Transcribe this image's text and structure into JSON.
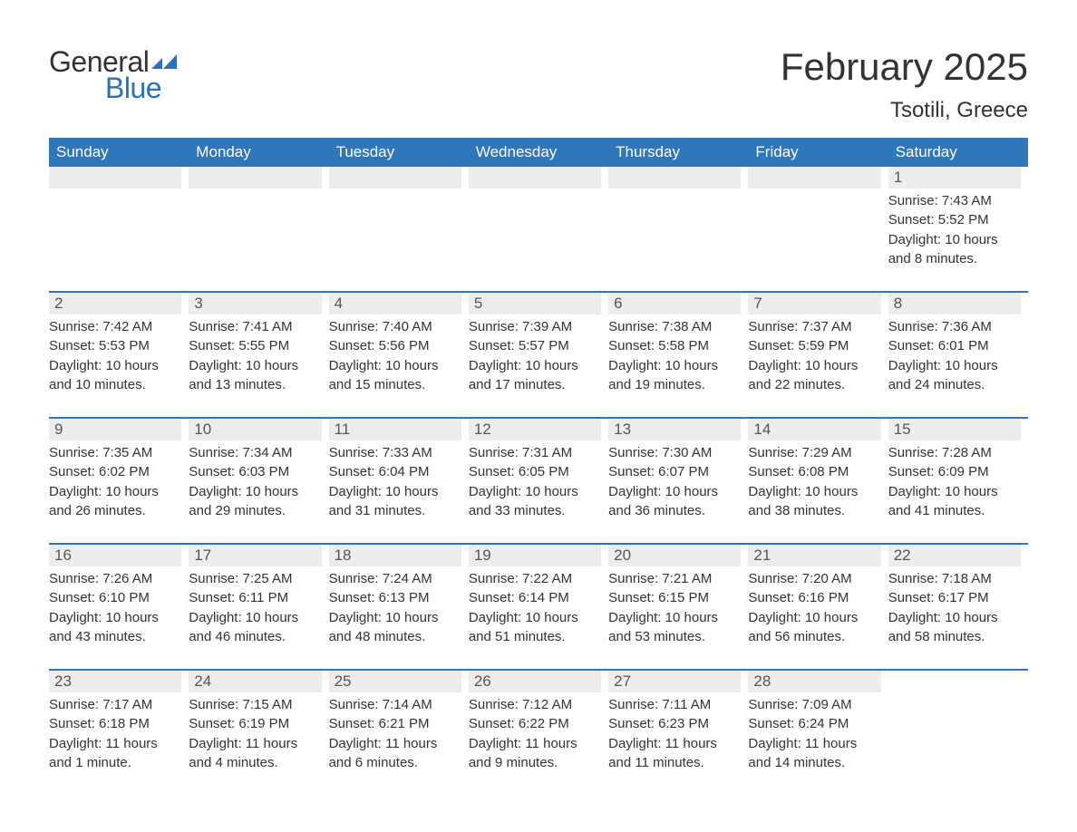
{
  "logo": {
    "text1": "General",
    "text2": "Blue",
    "icon_color": "#2a71b8"
  },
  "header": {
    "month_title": "February 2025",
    "location": "Tsotili, Greece"
  },
  "colors": {
    "header_bg": "#2f77bd",
    "header_text": "#ffffff",
    "daynum_bg": "#ededed",
    "text": "#333333",
    "rule": "#2f77bd"
  },
  "weekdays": [
    "Sunday",
    "Monday",
    "Tuesday",
    "Wednesday",
    "Thursday",
    "Friday",
    "Saturday"
  ],
  "weeks": [
    [
      {
        "empty": true
      },
      {
        "empty": true
      },
      {
        "empty": true
      },
      {
        "empty": true
      },
      {
        "empty": true
      },
      {
        "empty": true
      },
      {
        "day": "1",
        "sunrise": "Sunrise: 7:43 AM",
        "sunset": "Sunset: 5:52 PM",
        "daylight1": "Daylight: 10 hours",
        "daylight2": "and 8 minutes."
      }
    ],
    [
      {
        "day": "2",
        "sunrise": "Sunrise: 7:42 AM",
        "sunset": "Sunset: 5:53 PM",
        "daylight1": "Daylight: 10 hours",
        "daylight2": "and 10 minutes."
      },
      {
        "day": "3",
        "sunrise": "Sunrise: 7:41 AM",
        "sunset": "Sunset: 5:55 PM",
        "daylight1": "Daylight: 10 hours",
        "daylight2": "and 13 minutes."
      },
      {
        "day": "4",
        "sunrise": "Sunrise: 7:40 AM",
        "sunset": "Sunset: 5:56 PM",
        "daylight1": "Daylight: 10 hours",
        "daylight2": "and 15 minutes."
      },
      {
        "day": "5",
        "sunrise": "Sunrise: 7:39 AM",
        "sunset": "Sunset: 5:57 PM",
        "daylight1": "Daylight: 10 hours",
        "daylight2": "and 17 minutes."
      },
      {
        "day": "6",
        "sunrise": "Sunrise: 7:38 AM",
        "sunset": "Sunset: 5:58 PM",
        "daylight1": "Daylight: 10 hours",
        "daylight2": "and 19 minutes."
      },
      {
        "day": "7",
        "sunrise": "Sunrise: 7:37 AM",
        "sunset": "Sunset: 5:59 PM",
        "daylight1": "Daylight: 10 hours",
        "daylight2": "and 22 minutes."
      },
      {
        "day": "8",
        "sunrise": "Sunrise: 7:36 AM",
        "sunset": "Sunset: 6:01 PM",
        "daylight1": "Daylight: 10 hours",
        "daylight2": "and 24 minutes."
      }
    ],
    [
      {
        "day": "9",
        "sunrise": "Sunrise: 7:35 AM",
        "sunset": "Sunset: 6:02 PM",
        "daylight1": "Daylight: 10 hours",
        "daylight2": "and 26 minutes."
      },
      {
        "day": "10",
        "sunrise": "Sunrise: 7:34 AM",
        "sunset": "Sunset: 6:03 PM",
        "daylight1": "Daylight: 10 hours",
        "daylight2": "and 29 minutes."
      },
      {
        "day": "11",
        "sunrise": "Sunrise: 7:33 AM",
        "sunset": "Sunset: 6:04 PM",
        "daylight1": "Daylight: 10 hours",
        "daylight2": "and 31 minutes."
      },
      {
        "day": "12",
        "sunrise": "Sunrise: 7:31 AM",
        "sunset": "Sunset: 6:05 PM",
        "daylight1": "Daylight: 10 hours",
        "daylight2": "and 33 minutes."
      },
      {
        "day": "13",
        "sunrise": "Sunrise: 7:30 AM",
        "sunset": "Sunset: 6:07 PM",
        "daylight1": "Daylight: 10 hours",
        "daylight2": "and 36 minutes."
      },
      {
        "day": "14",
        "sunrise": "Sunrise: 7:29 AM",
        "sunset": "Sunset: 6:08 PM",
        "daylight1": "Daylight: 10 hours",
        "daylight2": "and 38 minutes."
      },
      {
        "day": "15",
        "sunrise": "Sunrise: 7:28 AM",
        "sunset": "Sunset: 6:09 PM",
        "daylight1": "Daylight: 10 hours",
        "daylight2": "and 41 minutes."
      }
    ],
    [
      {
        "day": "16",
        "sunrise": "Sunrise: 7:26 AM",
        "sunset": "Sunset: 6:10 PM",
        "daylight1": "Daylight: 10 hours",
        "daylight2": "and 43 minutes."
      },
      {
        "day": "17",
        "sunrise": "Sunrise: 7:25 AM",
        "sunset": "Sunset: 6:11 PM",
        "daylight1": "Daylight: 10 hours",
        "daylight2": "and 46 minutes."
      },
      {
        "day": "18",
        "sunrise": "Sunrise: 7:24 AM",
        "sunset": "Sunset: 6:13 PM",
        "daylight1": "Daylight: 10 hours",
        "daylight2": "and 48 minutes."
      },
      {
        "day": "19",
        "sunrise": "Sunrise: 7:22 AM",
        "sunset": "Sunset: 6:14 PM",
        "daylight1": "Daylight: 10 hours",
        "daylight2": "and 51 minutes."
      },
      {
        "day": "20",
        "sunrise": "Sunrise: 7:21 AM",
        "sunset": "Sunset: 6:15 PM",
        "daylight1": "Daylight: 10 hours",
        "daylight2": "and 53 minutes."
      },
      {
        "day": "21",
        "sunrise": "Sunrise: 7:20 AM",
        "sunset": "Sunset: 6:16 PM",
        "daylight1": "Daylight: 10 hours",
        "daylight2": "and 56 minutes."
      },
      {
        "day": "22",
        "sunrise": "Sunrise: 7:18 AM",
        "sunset": "Sunset: 6:17 PM",
        "daylight1": "Daylight: 10 hours",
        "daylight2": "and 58 minutes."
      }
    ],
    [
      {
        "day": "23",
        "sunrise": "Sunrise: 7:17 AM",
        "sunset": "Sunset: 6:18 PM",
        "daylight1": "Daylight: 11 hours",
        "daylight2": "and 1 minute."
      },
      {
        "day": "24",
        "sunrise": "Sunrise: 7:15 AM",
        "sunset": "Sunset: 6:19 PM",
        "daylight1": "Daylight: 11 hours",
        "daylight2": "and 4 minutes."
      },
      {
        "day": "25",
        "sunrise": "Sunrise: 7:14 AM",
        "sunset": "Sunset: 6:21 PM",
        "daylight1": "Daylight: 11 hours",
        "daylight2": "and 6 minutes."
      },
      {
        "day": "26",
        "sunrise": "Sunrise: 7:12 AM",
        "sunset": "Sunset: 6:22 PM",
        "daylight1": "Daylight: 11 hours",
        "daylight2": "and 9 minutes."
      },
      {
        "day": "27",
        "sunrise": "Sunrise: 7:11 AM",
        "sunset": "Sunset: 6:23 PM",
        "daylight1": "Daylight: 11 hours",
        "daylight2": "and 11 minutes."
      },
      {
        "day": "28",
        "sunrise": "Sunrise: 7:09 AM",
        "sunset": "Sunset: 6:24 PM",
        "daylight1": "Daylight: 11 hours",
        "daylight2": "and 14 minutes."
      },
      {
        "empty": true,
        "noBg": true
      }
    ]
  ]
}
